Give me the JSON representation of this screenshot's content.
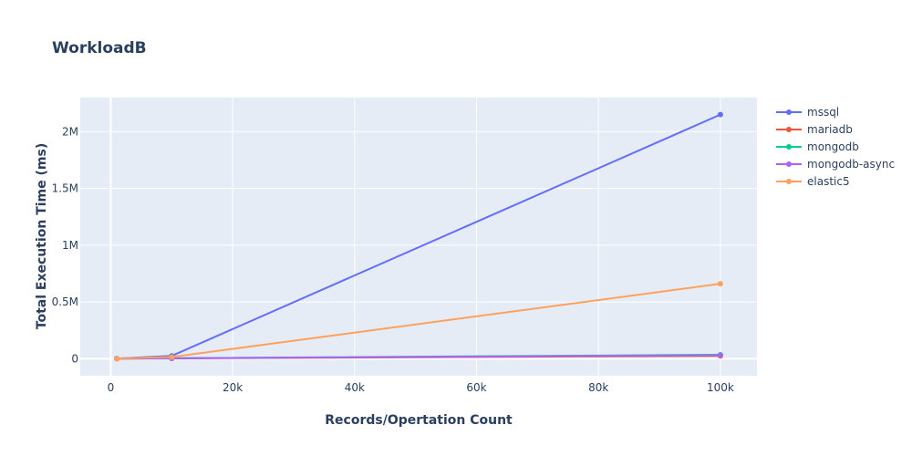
{
  "chart_data": {
    "type": "line",
    "title": "WorkloadB",
    "xlabel": "Records/Opertation Count",
    "ylabel": "Total Execution Time (ms)",
    "xlim": [
      -5000,
      106000
    ],
    "ylim": [
      -150000,
      2300000
    ],
    "x_ticks": [
      0,
      20000,
      40000,
      60000,
      80000,
      100000
    ],
    "x_tick_labels": [
      "0",
      "20k",
      "40k",
      "60k",
      "80k",
      "100k"
    ],
    "y_ticks": [
      0,
      500000,
      1000000,
      1500000,
      2000000
    ],
    "y_tick_labels": [
      "0",
      "0.5M",
      "1M",
      "1.5M",
      "2M"
    ],
    "grid": true,
    "legend_position": "right",
    "series": [
      {
        "name": "mssql",
        "color": "#636efa",
        "x": [
          1000,
          10000,
          100000
        ],
        "y": [
          2000,
          25000,
          2150000
        ]
      },
      {
        "name": "mariadb",
        "color": "#ef553b",
        "x": [
          1000,
          10000,
          100000
        ],
        "y": [
          1000,
          3000,
          25000
        ]
      },
      {
        "name": "mongodb",
        "color": "#00cc96",
        "x": [
          1000,
          10000,
          100000
        ],
        "y": [
          1500,
          4000,
          35000
        ]
      },
      {
        "name": "mongodb-async",
        "color": "#ab63fa",
        "x": [
          1000,
          10000,
          100000
        ],
        "y": [
          1500,
          4000,
          30000
        ]
      },
      {
        "name": "elastic5",
        "color": "#ffa15a",
        "x": [
          1000,
          10000,
          100000
        ],
        "y": [
          2000,
          15000,
          660000
        ]
      }
    ]
  }
}
